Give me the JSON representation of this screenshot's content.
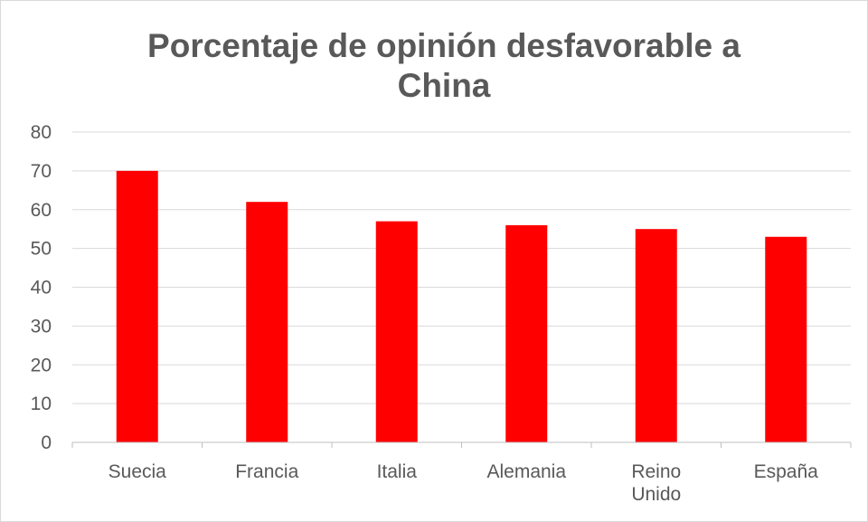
{
  "chart_data": {
    "type": "bar",
    "title": "Porcentaje de opinión desfavorable a China",
    "categories": [
      "Suecia",
      "Francia",
      "Italia",
      "Alemania",
      "Reino Unido",
      "España"
    ],
    "category_lines": [
      [
        "Suecia"
      ],
      [
        "Francia"
      ],
      [
        "Italia"
      ],
      [
        "Alemania"
      ],
      [
        "Reino",
        "Unido"
      ],
      [
        "España"
      ]
    ],
    "values": [
      70,
      62,
      57,
      56,
      55,
      53
    ],
    "ylim": [
      0,
      80
    ],
    "yticks": [
      "0",
      "10",
      "20",
      "30",
      "40",
      "50",
      "60",
      "70",
      "80"
    ],
    "xlabel": "",
    "ylabel": "",
    "grid": true,
    "legend": "none",
    "colors": {
      "bar": "#ff0000",
      "grid": "#d9d9d9",
      "axis": "#bfbfbf",
      "text": "#595959"
    }
  }
}
